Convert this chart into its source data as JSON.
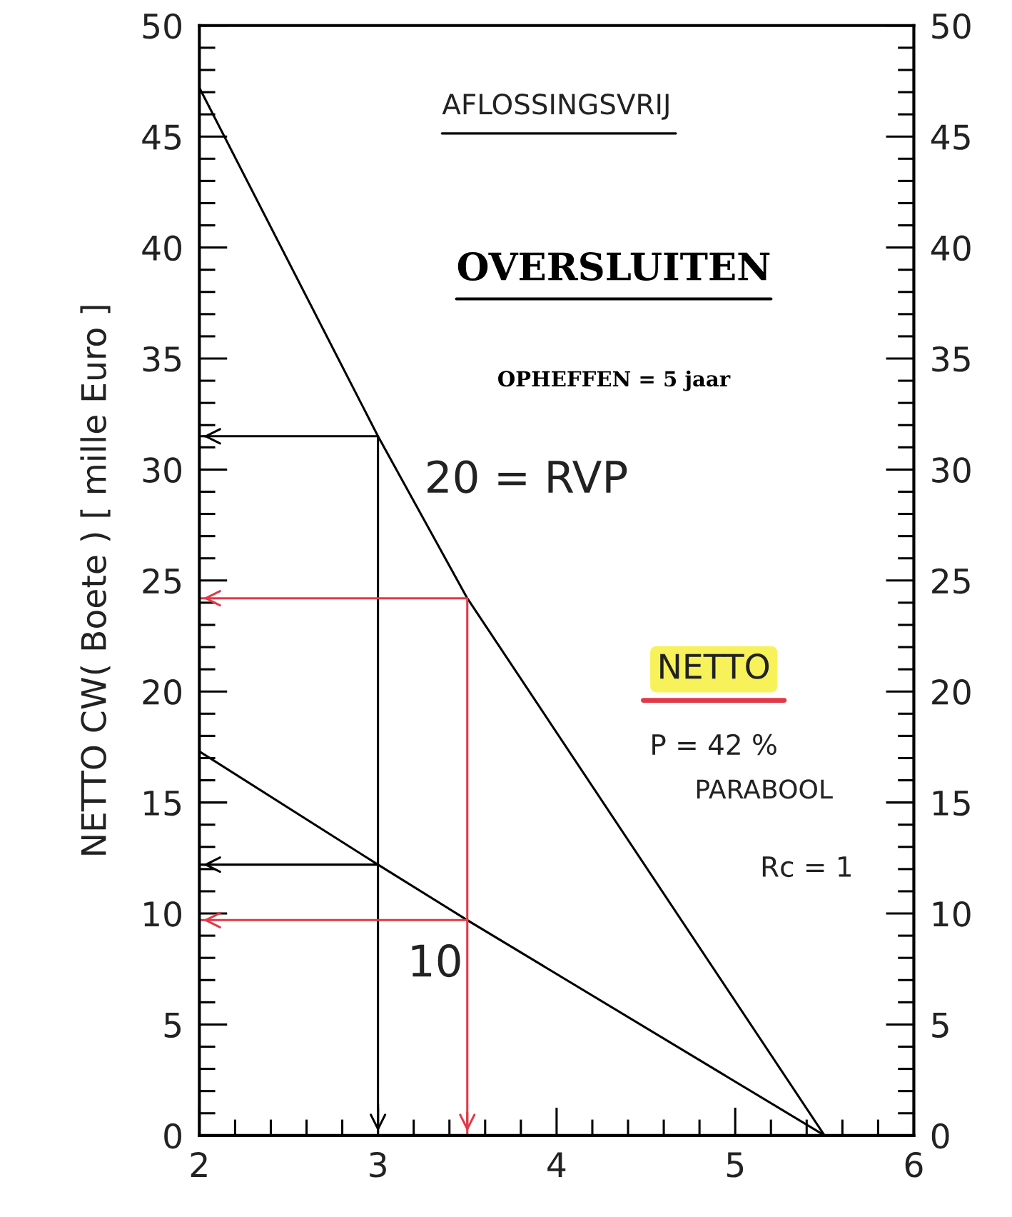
{
  "chart_data": {
    "type": "line",
    "title": "OVERSLUITEN",
    "subtitle": "OPHEFFEN = 5 jaar",
    "ylabel": "NETTO CW( Boete ) [ mille Euro ]",
    "xlim": [
      2,
      6
    ],
    "xticks": [
      2,
      {
        "value": 2.2,
        "label": null
      },
      {
        "value": 2.4,
        "label": null
      },
      {
        "value": 2.6,
        "label": null
      },
      {
        "value": 2.8,
        "label": null
      },
      3,
      {
        "value": 3.2,
        "label": null
      },
      {
        "value": 3.4,
        "label": null
      },
      {
        "value": 3.6,
        "label": null
      },
      {
        "value": 3.8,
        "label": null
      },
      4,
      {
        "value": 4.2,
        "label": null
      },
      {
        "value": 4.4,
        "label": null
      },
      {
        "value": 4.6,
        "label": null
      },
      {
        "value": 4.8,
        "label": null
      },
      5,
      {
        "value": 5.2,
        "label": null
      },
      {
        "value": 5.4,
        "label": null
      },
      {
        "value": 5.6,
        "label": null
      },
      {
        "value": 5.8,
        "label": null
      },
      6
    ],
    "ylim": [
      0,
      50
    ],
    "yticks": [
      0,
      {
        "value": 1,
        "label": null
      },
      {
        "value": 2,
        "label": null
      },
      {
        "value": 3,
        "label": null
      },
      {
        "value": 4,
        "label": null
      },
      5,
      {
        "value": 6,
        "label": null
      },
      {
        "value": 7,
        "label": null
      },
      {
        "value": 8,
        "label": null
      },
      {
        "value": 9,
        "label": null
      },
      10,
      {
        "value": 11,
        "label": null
      },
      {
        "value": 12,
        "label": null
      },
      {
        "value": 13,
        "label": null
      },
      {
        "value": 14,
        "label": null
      },
      15,
      {
        "value": 16,
        "label": null
      },
      {
        "value": 17,
        "label": null
      },
      {
        "value": 18,
        "label": null
      },
      {
        "value": 19,
        "label": null
      },
      20,
      {
        "value": 21,
        "label": null
      },
      {
        "value": 22,
        "label": null
      },
      {
        "value": 23,
        "label": null
      },
      {
        "value": 24,
        "label": null
      },
      25,
      {
        "value": 26,
        "label": null
      },
      {
        "value": 27,
        "label": null
      },
      {
        "value": 28,
        "label": null
      },
      {
        "value": 29,
        "label": null
      },
      30,
      {
        "value": 31,
        "label": null
      },
      {
        "value": 32,
        "label": null
      },
      {
        "value": 33,
        "label": null
      },
      {
        "value": 34,
        "label": null
      },
      35,
      {
        "value": 36,
        "label": null
      },
      {
        "value": 37,
        "label": null
      },
      {
        "value": 38,
        "label": null
      },
      {
        "value": 39,
        "label": null
      },
      40,
      {
        "value": 41,
        "label": null
      },
      {
        "value": 42,
        "label": null
      },
      {
        "value": 43,
        "label": null
      },
      {
        "value": 44,
        "label": null
      },
      45,
      {
        "value": 46,
        "label": null
      },
      {
        "value": 47,
        "label": null
      },
      {
        "value": 48,
        "label": null
      },
      {
        "value": 49,
        "label": null
      },
      50
    ],
    "y2lim": [
      0,
      50
    ],
    "y2ticks": [
      0,
      {
        "value": 1,
        "label": null
      },
      {
        "value": 2,
        "label": null
      },
      {
        "value": 3,
        "label": null
      },
      {
        "value": 4,
        "label": null
      },
      5,
      {
        "value": 6,
        "label": null
      },
      {
        "value": 7,
        "label": null
      },
      {
        "value": 8,
        "label": null
      },
      {
        "value": 9,
        "label": null
      },
      10,
      {
        "value": 11,
        "label": null
      },
      {
        "value": 12,
        "label": null
      },
      {
        "value": 13,
        "label": null
      },
      {
        "value": 14,
        "label": null
      },
      15,
      {
        "value": 16,
        "label": null
      },
      {
        "value": 17,
        "label": null
      },
      {
        "value": 18,
        "label": null
      },
      {
        "value": 19,
        "label": null
      },
      20,
      {
        "value": 21,
        "label": null
      },
      {
        "value": 22,
        "label": null
      },
      {
        "value": 23,
        "label": null
      },
      {
        "value": 24,
        "label": null
      },
      25,
      {
        "value": 26,
        "label": null
      },
      {
        "value": 27,
        "label": null
      },
      {
        "value": 28,
        "label": null
      },
      {
        "value": 29,
        "label": null
      },
      30,
      {
        "value": 31,
        "label": null
      },
      {
        "value": 32,
        "label": null
      },
      {
        "value": 33,
        "label": null
      },
      {
        "value": 34,
        "label": null
      },
      35,
      {
        "value": 36,
        "label": null
      },
      {
        "value": 37,
        "label": null
      },
      {
        "value": 38,
        "label": null
      },
      {
        "value": 39,
        "label": null
      },
      40,
      {
        "value": 41,
        "label": null
      },
      {
        "value": 42,
        "label": null
      },
      {
        "value": 43,
        "label": null
      },
      {
        "value": 44,
        "label": null
      },
      45,
      {
        "value": 46,
        "label": null
      },
      {
        "value": 47,
        "label": null
      },
      {
        "value": 48,
        "label": null
      },
      {
        "value": 49,
        "label": null
      },
      50
    ],
    "grid": false,
    "series": [
      {
        "color": "#000000",
        "x": [
          2,
          3,
          3.5,
          5.5
        ],
        "values": [
          47.2,
          31.5,
          24.2,
          0
        ]
      },
      {
        "color": "#000000",
        "x": [
          2,
          3,
          3.5,
          5.5
        ],
        "values": [
          17.3,
          12.2,
          9.7,
          0
        ]
      },
      {
        "color": "#000000",
        "x": [
          2,
          3,
          3
        ],
        "values": [
          31.5,
          31.5,
          0
        ]
      },
      {
        "color": "#000000",
        "x": [
          3,
          2
        ],
        "values": [
          12.2,
          12.2
        ]
      },
      {
        "color": "#e03a48",
        "x": [
          2,
          3.5,
          3.5
        ],
        "values": [
          24.2,
          24.2,
          0
        ]
      },
      {
        "color": "#e03a48",
        "x": [
          3.5,
          2
        ],
        "values": [
          9.7,
          9.7
        ]
      }
    ],
    "annotations": [
      "AFLOSSINGSVRIJ",
      "NETTO",
      "P = 42 %",
      "PARABOOL",
      "Rc = 1",
      "20 = RVP",
      "10"
    ]
  }
}
